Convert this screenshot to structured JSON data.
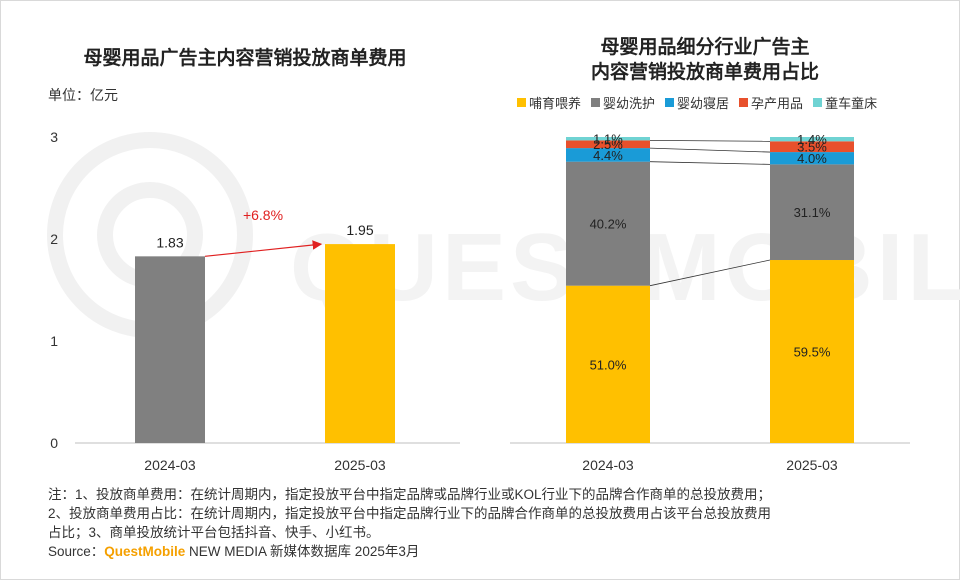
{
  "left_chart": {
    "title": "母婴用品广告主内容营销投放商单费用",
    "unit_label": "单位：亿元",
    "growth_label": "+6.8%"
  },
  "right_chart": {
    "title_line1": "母婴用品细分行业广告主",
    "title_line2": "内容营销投放商单费用占比"
  },
  "chart_data": [
    {
      "type": "bar",
      "title": "母婴用品广告主内容营销投放商单费用",
      "ylabel": "单位：亿元",
      "categories": [
        "2024-03",
        "2025-03"
      ],
      "values": [
        1.83,
        1.95
      ],
      "value_labels": [
        "1.83",
        "1.95"
      ],
      "ylim": [
        0,
        3
      ],
      "yticks": [
        "0",
        "1",
        "2",
        "3"
      ],
      "colors": [
        "#808080",
        "#ffc000"
      ],
      "annotation": "+6.8%"
    },
    {
      "type": "bar",
      "stacked": true,
      "title": "母婴用品细分行业广告主内容营销投放商单费用占比",
      "categories": [
        "2024-03",
        "2025-03"
      ],
      "series": [
        {
          "name": "哺育喂养",
          "color": "#ffc000",
          "values": [
            51.0,
            59.5
          ],
          "labels": [
            "51.0%",
            "59.5%"
          ]
        },
        {
          "name": "婴幼洗护",
          "color": "#7f7f7f",
          "values": [
            40.2,
            31.1
          ],
          "labels": [
            "40.2%",
            "31.1%"
          ]
        },
        {
          "name": "婴幼寝居",
          "color": "#1a9bd7",
          "values": [
            4.4,
            4.0
          ],
          "labels": [
            "4.4%",
            "4.0%"
          ]
        },
        {
          "name": "孕产用品",
          "color": "#e8502c",
          "values": [
            2.5,
            3.5
          ],
          "labels": [
            "2.5%",
            "3.5%"
          ]
        },
        {
          "name": "童车童床",
          "color": "#6fd3d3",
          "values": [
            1.1,
            1.4
          ],
          "labels": [
            "1.1%",
            "1.4%"
          ]
        }
      ]
    }
  ],
  "notes": {
    "line1": "注：1、投放商单费用：在统计周期内，指定投放平台中指定品牌或品牌行业或KOL行业下的品牌合作商单的总投放费用；",
    "line2": "2、投放商单费用占比：在统计周期内，指定投放平台中指定品牌行业下的品牌合作商单的总投放费用占该平台总投放费用",
    "line3": "占比；3、商单投放统计平台包括抖音、快手、小红书。",
    "source_prefix": "Source：",
    "source_brand": "QuestMobile",
    "source_suffix": " NEW MEDIA 新媒体数据库 2025年3月"
  }
}
